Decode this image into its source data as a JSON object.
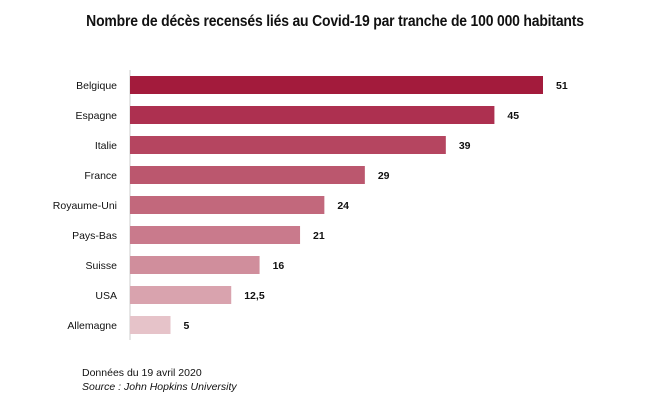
{
  "chart_data": {
    "type": "bar",
    "orientation": "horizontal",
    "title": "Nombre de décès recensés liés au Covid-19 par tranche de 100 000 habitants",
    "categories": [
      "Belgique",
      "Espagne",
      "Italie",
      "France",
      "Royaume-Uni",
      "Pays-Bas",
      "Suisse",
      "USA",
      "Allemagne"
    ],
    "values": [
      51,
      45,
      39,
      29,
      24,
      21,
      16,
      12.5,
      5
    ],
    "value_labels": [
      "51",
      "45",
      "39",
      "29",
      "24",
      "21",
      "16",
      "12,5",
      "5"
    ],
    "colors": [
      "#a31b3c",
      "#ad3050",
      "#b54560",
      "#bb576e",
      "#c2687c",
      "#c97a8c",
      "#d08e9c",
      "#d9a3ae",
      "#e6c3c9"
    ],
    "xlim": [
      0,
      51
    ],
    "grid": false,
    "legend": "none"
  },
  "footer": {
    "date_note": "Données du 19 avril 2020",
    "source": "Source : John Hopkins University"
  }
}
